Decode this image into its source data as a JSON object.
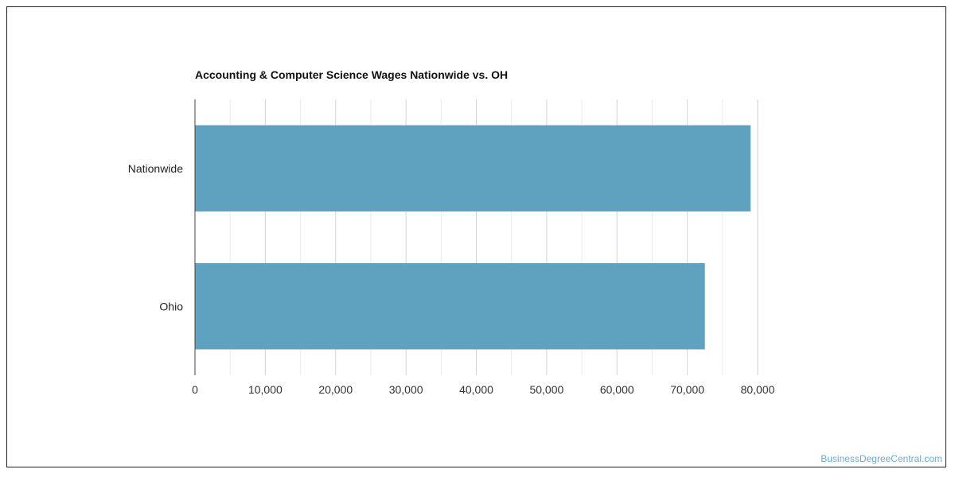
{
  "chart_data": {
    "type": "bar",
    "orientation": "horizontal",
    "title": "Accounting & Computer Science Wages Nationwide vs. OH",
    "categories": [
      "Nationwide",
      "Ohio"
    ],
    "values": [
      79000,
      72500
    ],
    "xlim": [
      0,
      80000
    ],
    "x_ticks": [
      0,
      10000,
      20000,
      30000,
      40000,
      50000,
      60000,
      70000,
      80000
    ],
    "x_tick_labels": [
      "0",
      "10,000",
      "20,000",
      "30,000",
      "40,000",
      "50,000",
      "60,000",
      "70,000",
      "80,000"
    ],
    "grid": true,
    "bar_color": "#5fa2bf",
    "xlabel": "",
    "ylabel": ""
  },
  "watermark": "BusinessDegreeCentral.com"
}
